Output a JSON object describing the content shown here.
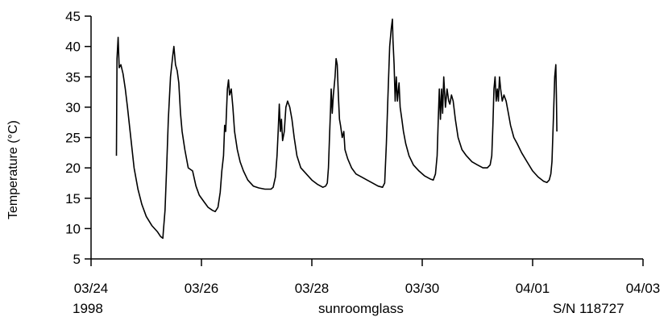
{
  "chart_data": {
    "type": "line",
    "ylabel": "Temperature  (°C)",
    "xlabel": "sunroomglass",
    "footer_left": "1998",
    "footer_right": "S/N 118727",
    "ylim": [
      5,
      45
    ],
    "yticks": [
      "5",
      "10",
      "15",
      "20",
      "25",
      "30",
      "35",
      "40",
      "45"
    ],
    "xlim": [
      0,
      10
    ],
    "xticks": [
      {
        "x": 0,
        "label": "03/24"
      },
      {
        "x": 2,
        "label": "03/26"
      },
      {
        "x": 4,
        "label": "03/28"
      },
      {
        "x": 6,
        "label": "03/30"
      },
      {
        "x": 8,
        "label": "04/01"
      },
      {
        "x": 10,
        "label": "04/03"
      }
    ],
    "grid": false,
    "series": [
      {
        "color": "#000000",
        "points": [
          [
            0.46,
            22
          ],
          [
            0.47,
            38
          ],
          [
            0.49,
            41.5
          ],
          [
            0.51,
            36.5
          ],
          [
            0.54,
            37
          ],
          [
            0.58,
            35.5
          ],
          [
            0.62,
            33
          ],
          [
            0.66,
            30
          ],
          [
            0.72,
            25
          ],
          [
            0.78,
            20
          ],
          [
            0.85,
            16.5
          ],
          [
            0.92,
            14
          ],
          [
            1.0,
            12
          ],
          [
            1.1,
            10.5
          ],
          [
            1.2,
            9.5
          ],
          [
            1.26,
            8.7
          ],
          [
            1.3,
            8.4
          ],
          [
            1.31,
            9.5
          ],
          [
            1.34,
            13
          ],
          [
            1.37,
            20
          ],
          [
            1.4,
            28
          ],
          [
            1.44,
            35
          ],
          [
            1.48,
            38.5
          ],
          [
            1.5,
            40
          ],
          [
            1.53,
            37
          ],
          [
            1.56,
            36
          ],
          [
            1.59,
            34
          ],
          [
            1.62,
            29
          ],
          [
            1.65,
            26
          ],
          [
            1.7,
            23
          ],
          [
            1.76,
            20
          ],
          [
            1.84,
            19.5
          ],
          [
            1.9,
            17
          ],
          [
            1.96,
            15.5
          ],
          [
            2.04,
            14.5
          ],
          [
            2.12,
            13.5
          ],
          [
            2.2,
            13
          ],
          [
            2.25,
            12.8
          ],
          [
            2.3,
            13.5
          ],
          [
            2.34,
            16
          ],
          [
            2.37,
            19.5
          ],
          [
            2.4,
            22
          ],
          [
            2.42,
            27
          ],
          [
            2.44,
            26
          ],
          [
            2.47,
            33
          ],
          [
            2.49,
            34.5
          ],
          [
            2.51,
            32
          ],
          [
            2.54,
            33
          ],
          [
            2.57,
            30
          ],
          [
            2.6,
            26
          ],
          [
            2.65,
            23
          ],
          [
            2.7,
            21
          ],
          [
            2.76,
            19.5
          ],
          [
            2.84,
            18
          ],
          [
            2.94,
            17
          ],
          [
            3.04,
            16.7
          ],
          [
            3.15,
            16.5
          ],
          [
            3.26,
            16.5
          ],
          [
            3.3,
            16.8
          ],
          [
            3.34,
            18.5
          ],
          [
            3.37,
            22
          ],
          [
            3.39,
            26
          ],
          [
            3.41,
            30.5
          ],
          [
            3.43,
            26
          ],
          [
            3.45,
            28
          ],
          [
            3.47,
            24.5
          ],
          [
            3.5,
            26
          ],
          [
            3.53,
            30
          ],
          [
            3.56,
            31
          ],
          [
            3.6,
            30
          ],
          [
            3.64,
            28
          ],
          [
            3.68,
            25
          ],
          [
            3.73,
            22
          ],
          [
            3.8,
            20
          ],
          [
            3.9,
            19
          ],
          [
            4.0,
            18
          ],
          [
            4.1,
            17.3
          ],
          [
            4.2,
            16.8
          ],
          [
            4.25,
            17
          ],
          [
            4.28,
            17.5
          ],
          [
            4.3,
            20
          ],
          [
            4.32,
            25
          ],
          [
            4.34,
            30
          ],
          [
            4.35,
            33
          ],
          [
            4.37,
            29
          ],
          [
            4.39,
            32
          ],
          [
            4.42,
            35
          ],
          [
            4.44,
            38
          ],
          [
            4.46,
            37
          ],
          [
            4.48,
            32
          ],
          [
            4.5,
            28
          ],
          [
            4.52,
            27
          ],
          [
            4.55,
            25
          ],
          [
            4.58,
            26
          ],
          [
            4.6,
            23
          ],
          [
            4.65,
            21.5
          ],
          [
            4.72,
            20
          ],
          [
            4.8,
            19
          ],
          [
            4.9,
            18.5
          ],
          [
            5.0,
            18
          ],
          [
            5.1,
            17.5
          ],
          [
            5.2,
            17
          ],
          [
            5.28,
            16.8
          ],
          [
            5.32,
            17.5
          ],
          [
            5.35,
            24
          ],
          [
            5.38,
            32
          ],
          [
            5.41,
            40
          ],
          [
            5.44,
            43
          ],
          [
            5.46,
            44.5
          ],
          [
            5.47,
            41
          ],
          [
            5.49,
            37
          ],
          [
            5.51,
            31
          ],
          [
            5.53,
            35
          ],
          [
            5.55,
            31
          ],
          [
            5.58,
            34
          ],
          [
            5.6,
            30
          ],
          [
            5.63,
            28
          ],
          [
            5.66,
            26
          ],
          [
            5.7,
            24
          ],
          [
            5.76,
            22
          ],
          [
            5.84,
            20.5
          ],
          [
            5.94,
            19.5
          ],
          [
            6.04,
            18.7
          ],
          [
            6.14,
            18.2
          ],
          [
            6.2,
            18
          ],
          [
            6.24,
            19
          ],
          [
            6.27,
            22
          ],
          [
            6.29,
            28
          ],
          [
            6.31,
            33
          ],
          [
            6.33,
            28
          ],
          [
            6.35,
            33
          ],
          [
            6.37,
            29
          ],
          [
            6.39,
            35
          ],
          [
            6.42,
            30
          ],
          [
            6.45,
            33
          ],
          [
            6.48,
            31
          ],
          [
            6.5,
            30.5
          ],
          [
            6.53,
            32
          ],
          [
            6.56,
            31
          ],
          [
            6.6,
            28
          ],
          [
            6.65,
            25
          ],
          [
            6.72,
            23
          ],
          [
            6.8,
            22
          ],
          [
            6.9,
            21
          ],
          [
            7.0,
            20.5
          ],
          [
            7.1,
            20
          ],
          [
            7.18,
            20
          ],
          [
            7.23,
            20.5
          ],
          [
            7.26,
            22
          ],
          [
            7.28,
            27
          ],
          [
            7.3,
            33
          ],
          [
            7.32,
            35
          ],
          [
            7.34,
            31
          ],
          [
            7.36,
            33
          ],
          [
            7.38,
            31
          ],
          [
            7.4,
            35
          ],
          [
            7.42,
            33
          ],
          [
            7.45,
            31
          ],
          [
            7.48,
            32
          ],
          [
            7.52,
            31
          ],
          [
            7.56,
            29
          ],
          [
            7.6,
            27
          ],
          [
            7.66,
            25
          ],
          [
            7.72,
            24
          ],
          [
            7.8,
            22.5
          ],
          [
            7.9,
            21
          ],
          [
            8.0,
            19.5
          ],
          [
            8.1,
            18.5
          ],
          [
            8.2,
            17.8
          ],
          [
            8.26,
            17.6
          ],
          [
            8.3,
            18
          ],
          [
            8.33,
            19
          ],
          [
            8.35,
            21
          ],
          [
            8.38,
            29
          ],
          [
            8.4,
            35
          ],
          [
            8.42,
            37
          ],
          [
            8.43,
            32
          ],
          [
            8.44,
            26
          ]
        ]
      }
    ]
  }
}
